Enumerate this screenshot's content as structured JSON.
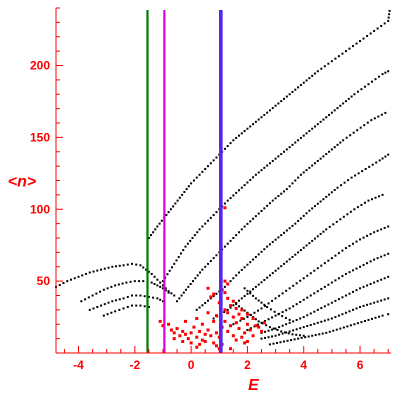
{
  "chart_data": {
    "type": "scatter",
    "title": "",
    "xlabel": "E",
    "ylabel": "<n>",
    "xlim": [
      -4.8,
      7.1
    ],
    "ylim": [
      0,
      240
    ],
    "xticks": [
      -4,
      -2,
      0,
      2,
      4,
      6
    ],
    "yticks": [
      50,
      100,
      150,
      200
    ],
    "grid": false,
    "colors": {
      "axis": "#ff0000",
      "black_points": "#000000",
      "red_points": "#ff0000",
      "line_green": "#007a00",
      "line_magenta": "#dd00dd",
      "line_blue": "#3333ff",
      "line_violet": "#aa00cc"
    },
    "vertical_lines": [
      {
        "x": -1.55,
        "color": "#007a00"
      },
      {
        "x": -0.95,
        "color": "#dd00dd"
      },
      {
        "x": 1.03,
        "color": "#aa00cc"
      },
      {
        "x": 1.08,
        "color": "#3333ff"
      }
    ],
    "black_series": [
      {
        "points": [
          [
            -4.8,
            46
          ],
          [
            -4.4,
            50
          ],
          [
            -4.0,
            53
          ],
          [
            -3.6,
            56
          ],
          [
            -3.2,
            58
          ],
          [
            -2.8,
            60
          ],
          [
            -2.4,
            61
          ],
          [
            -2.1,
            62
          ],
          [
            -1.8,
            61
          ],
          [
            -1.6,
            58
          ],
          [
            -1.4,
            55
          ],
          [
            -1.2,
            51
          ],
          [
            -1.0,
            47
          ],
          [
            -0.8,
            43
          ],
          [
            -0.6,
            40
          ]
        ]
      },
      {
        "points": [
          [
            -3.9,
            36
          ],
          [
            -3.5,
            40
          ],
          [
            -3.1,
            44
          ],
          [
            -2.7,
            47
          ],
          [
            -2.3,
            49
          ],
          [
            -2.0,
            50
          ],
          [
            -1.7,
            50
          ],
          [
            -1.4,
            49
          ],
          [
            -1.2,
            47
          ],
          [
            -1.0,
            45
          ],
          [
            -0.8,
            42
          ]
        ]
      },
      {
        "points": [
          [
            -3.6,
            30
          ],
          [
            -3.2,
            33
          ],
          [
            -2.8,
            36
          ],
          [
            -2.4,
            38
          ],
          [
            -2.1,
            40
          ],
          [
            -1.8,
            40
          ],
          [
            -1.5,
            39
          ],
          [
            -1.2,
            38
          ],
          [
            -1.0,
            36
          ]
        ]
      },
      {
        "points": [
          [
            -3.1,
            26
          ],
          [
            -2.7,
            29
          ],
          [
            -2.4,
            31
          ],
          [
            -2.1,
            33
          ],
          [
            -1.8,
            33
          ],
          [
            -1.5,
            32
          ]
        ]
      },
      {
        "points": [
          [
            -1.5,
            80
          ],
          [
            -1.2,
            88
          ],
          [
            -0.8,
            98
          ],
          [
            -0.4,
            108
          ],
          [
            0.0,
            118
          ],
          [
            0.5,
            128
          ],
          [
            1.0,
            138
          ],
          [
            1.5,
            148
          ],
          [
            2.0,
            156
          ],
          [
            2.5,
            164
          ],
          [
            3.0,
            172
          ],
          [
            3.5,
            180
          ],
          [
            4.0,
            188
          ],
          [
            4.5,
            196
          ],
          [
            5.0,
            203
          ],
          [
            5.5,
            210
          ],
          [
            6.0,
            217
          ],
          [
            6.5,
            224
          ],
          [
            7.0,
            231
          ],
          [
            7.05,
            238
          ]
        ]
      },
      {
        "points": [
          [
            -1.0,
            50
          ],
          [
            -0.6,
            62
          ],
          [
            -0.2,
            74
          ],
          [
            0.3,
            86
          ],
          [
            0.8,
            96
          ],
          [
            1.3,
            106
          ],
          [
            1.8,
            115
          ],
          [
            2.3,
            124
          ],
          [
            2.8,
            132
          ],
          [
            3.3,
            140
          ],
          [
            3.8,
            148
          ],
          [
            4.3,
            156
          ],
          [
            4.8,
            164
          ],
          [
            5.3,
            172
          ],
          [
            5.8,
            180
          ],
          [
            6.3,
            187
          ],
          [
            6.8,
            194
          ],
          [
            7.0,
            196
          ]
        ]
      },
      {
        "points": [
          [
            -0.5,
            36
          ],
          [
            -0.1,
            46
          ],
          [
            0.4,
            58
          ],
          [
            0.9,
            68
          ],
          [
            1.4,
            78
          ],
          [
            1.9,
            88
          ],
          [
            2.4,
            97
          ],
          [
            2.9,
            106
          ],
          [
            3.4,
            114
          ],
          [
            3.9,
            124
          ],
          [
            4.4,
            132
          ],
          [
            4.9,
            140
          ],
          [
            5.4,
            148
          ],
          [
            5.9,
            155
          ],
          [
            6.4,
            162
          ],
          [
            6.9,
            167
          ]
        ]
      },
      {
        "points": [
          [
            0.2,
            30
          ],
          [
            0.7,
            38
          ],
          [
            1.2,
            46
          ],
          [
            1.7,
            56
          ],
          [
            2.2,
            65
          ],
          [
            2.7,
            74
          ],
          [
            3.2,
            82
          ],
          [
            3.7,
            90
          ],
          [
            4.2,
            99
          ],
          [
            4.7,
            107
          ],
          [
            5.2,
            115
          ],
          [
            5.7,
            122
          ],
          [
            6.2,
            128
          ],
          [
            6.7,
            134
          ],
          [
            7.0,
            138
          ]
        ]
      },
      {
        "points": [
          [
            0.8,
            24
          ],
          [
            1.3,
            30
          ],
          [
            1.8,
            38
          ],
          [
            2.3,
            46
          ],
          [
            2.8,
            54
          ],
          [
            3.3,
            62
          ],
          [
            3.8,
            70
          ],
          [
            4.3,
            78
          ],
          [
            4.8,
            86
          ],
          [
            5.3,
            93
          ],
          [
            5.8,
            100
          ],
          [
            6.3,
            106
          ],
          [
            6.8,
            110
          ]
        ]
      },
      {
        "points": [
          [
            1.5,
            20
          ],
          [
            2.0,
            25
          ],
          [
            2.5,
            31
          ],
          [
            3.0,
            38
          ],
          [
            3.5,
            45
          ],
          [
            4.0,
            52
          ],
          [
            4.5,
            59
          ],
          [
            5.0,
            66
          ],
          [
            5.5,
            73
          ],
          [
            6.0,
            79
          ],
          [
            6.5,
            84
          ],
          [
            7.0,
            88
          ]
        ]
      },
      {
        "points": [
          [
            2.0,
            16
          ],
          [
            2.5,
            21
          ],
          [
            3.0,
            26
          ],
          [
            3.5,
            31
          ],
          [
            4.0,
            37
          ],
          [
            4.5,
            43
          ],
          [
            5.0,
            49
          ],
          [
            5.5,
            55
          ],
          [
            6.0,
            60
          ],
          [
            6.5,
            65
          ],
          [
            7.0,
            69
          ]
        ]
      },
      {
        "points": [
          [
            2.5,
            14
          ],
          [
            3.0,
            17
          ],
          [
            3.5,
            21
          ],
          [
            4.0,
            25
          ],
          [
            4.5,
            30
          ],
          [
            5.0,
            35
          ],
          [
            5.5,
            40
          ],
          [
            6.0,
            45
          ],
          [
            6.5,
            49
          ],
          [
            7.0,
            53
          ]
        ]
      },
      {
        "points": [
          [
            2.5,
            10
          ],
          [
            3.0,
            12
          ],
          [
            3.5,
            15
          ],
          [
            4.0,
            18
          ],
          [
            4.5,
            21
          ],
          [
            5.0,
            24
          ],
          [
            5.5,
            28
          ],
          [
            6.0,
            32
          ],
          [
            6.5,
            35
          ],
          [
            7.0,
            38
          ]
        ]
      },
      {
        "points": [
          [
            2.8,
            6
          ],
          [
            3.3,
            8
          ],
          [
            3.8,
            10
          ],
          [
            4.3,
            12
          ],
          [
            4.8,
            14
          ],
          [
            5.3,
            17
          ],
          [
            5.8,
            20
          ],
          [
            6.3,
            23
          ],
          [
            6.8,
            26
          ],
          [
            7.0,
            27
          ]
        ]
      },
      {
        "points": [
          [
            1.6,
            34
          ],
          [
            2.0,
            28
          ],
          [
            2.4,
            22
          ],
          [
            2.8,
            18
          ],
          [
            3.2,
            15
          ],
          [
            3.6,
            13
          ],
          [
            4.0,
            12
          ]
        ]
      },
      {
        "points": [
          [
            1.9,
            45
          ],
          [
            2.3,
            38
          ],
          [
            2.7,
            32
          ],
          [
            3.1,
            27
          ],
          [
            3.5,
            23
          ]
        ]
      }
    ],
    "red_points": [
      [
        -1.1,
        22
      ],
      [
        -1.0,
        19
      ],
      [
        -0.8,
        20
      ],
      [
        -0.7,
        16
      ],
      [
        -0.6,
        14
      ],
      [
        -0.5,
        17
      ],
      [
        -0.4,
        12
      ],
      [
        -0.3,
        15
      ],
      [
        -0.2,
        13
      ],
      [
        -0.1,
        10
      ],
      [
        0.0,
        14
      ],
      [
        0.1,
        18
      ],
      [
        0.2,
        11
      ],
      [
        0.3,
        15
      ],
      [
        0.4,
        9
      ],
      [
        0.5,
        13
      ],
      [
        0.6,
        16
      ],
      [
        0.7,
        12
      ],
      [
        0.8,
        7
      ],
      [
        0.9,
        14
      ],
      [
        1.0,
        11
      ],
      [
        1.1,
        18
      ],
      [
        1.2,
        22
      ],
      [
        1.3,
        15
      ],
      [
        1.4,
        19
      ],
      [
        1.5,
        25
      ],
      [
        1.6,
        21
      ],
      [
        1.7,
        17
      ],
      [
        1.8,
        24
      ],
      [
        1.9,
        14
      ],
      [
        2.0,
        20
      ],
      [
        2.1,
        16
      ],
      [
        2.2,
        12
      ],
      [
        2.3,
        19
      ],
      [
        2.5,
        15
      ],
      [
        2.6,
        21
      ],
      [
        1.2,
        30
      ],
      [
        1.3,
        28
      ],
      [
        1.4,
        33
      ],
      [
        1.5,
        36
      ],
      [
        1.6,
        31
      ],
      [
        1.7,
        27
      ],
      [
        1.3,
        38
      ],
      [
        1.2,
        42
      ],
      [
        1.3,
        48
      ],
      [
        1.2,
        50
      ],
      [
        1.1,
        44
      ],
      [
        0.7,
        39
      ],
      [
        0.8,
        41
      ],
      [
        0.6,
        45
      ],
      [
        1.2,
        101
      ],
      [
        1.0,
        35
      ],
      [
        0.9,
        26
      ],
      [
        0.5,
        8
      ],
      [
        0.3,
        6
      ],
      [
        0.9,
        5
      ],
      [
        1.1,
        6
      ],
      [
        1.6,
        9
      ],
      [
        1.8,
        11
      ],
      [
        2.0,
        8
      ],
      [
        -0.2,
        22
      ],
      [
        0.2,
        24
      ],
      [
        0.6,
        28
      ],
      [
        1.8,
        30
      ],
      [
        2.0,
        27
      ],
      [
        2.2,
        24
      ],
      [
        2.4,
        18
      ],
      [
        0.0,
        7
      ],
      [
        -0.3,
        8
      ],
      [
        -0.6,
        10
      ],
      [
        0.4,
        20
      ],
      [
        0.8,
        22
      ],
      [
        1.5,
        12
      ],
      [
        1.9,
        7
      ],
      [
        0.2,
        4
      ],
      [
        1.4,
        3
      ],
      [
        1.0,
        3
      ]
    ]
  }
}
